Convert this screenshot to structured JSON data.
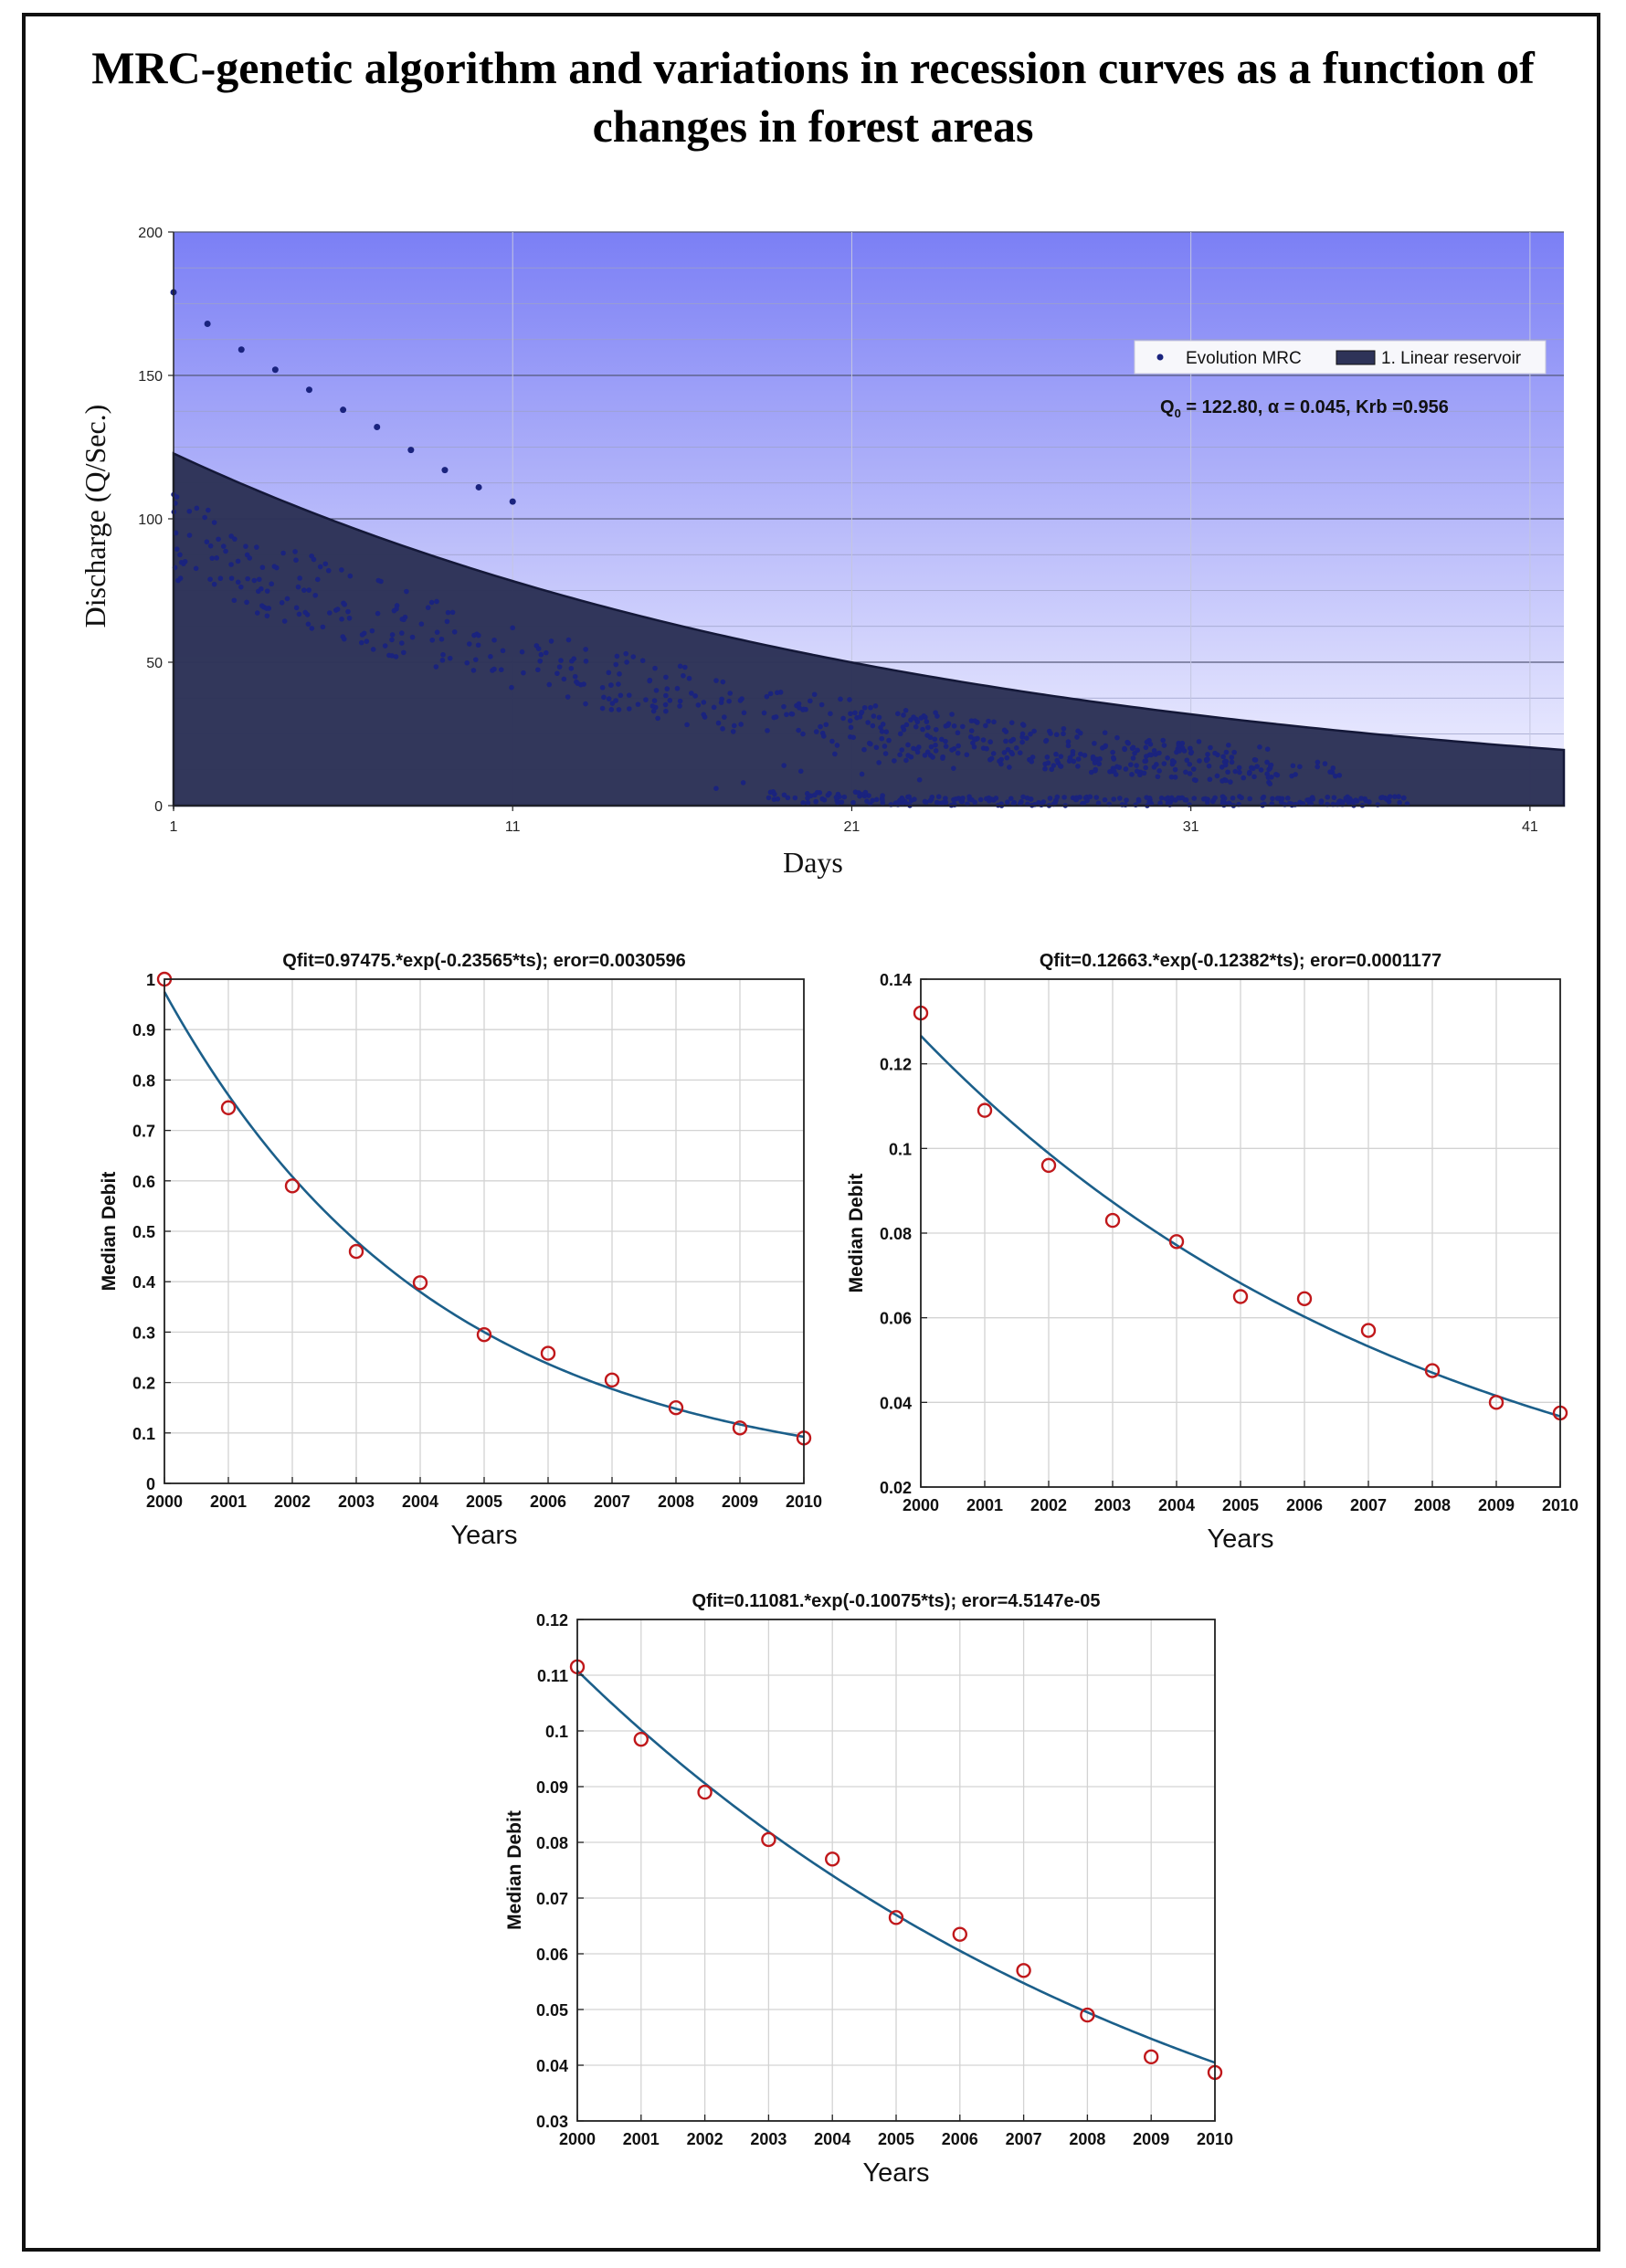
{
  "page": {
    "title": "MRC-genetic algorithm and variations in recession curves as a function of changes in forest areas"
  },
  "chart_data": [
    {
      "type": "scatter",
      "xlabel": "Days",
      "ylabel": "Discharge (Q/Sec.)",
      "xlim": [
        1,
        42
      ],
      "ylim": [
        0,
        200
      ],
      "xticks": [
        1,
        11,
        21,
        31,
        41
      ],
      "yticks": [
        0,
        50,
        100,
        150,
        200
      ],
      "legend": [
        "Evolution MRC",
        "1. Linear reservoir"
      ],
      "legend_position": "top-right",
      "annotation": {
        "prefix": "Q",
        "sub": "0",
        "rest": " = 122.80, α = 0.045, Krb =0.956"
      },
      "reservoir": {
        "q0": 122.8,
        "krb": 0.956
      },
      "upper_points": {
        "x": [
          1,
          2,
          3,
          4,
          5,
          6,
          7,
          8,
          9,
          10,
          11
        ],
        "y": [
          179,
          168,
          159,
          152,
          145,
          138,
          132,
          124,
          117,
          111,
          106
        ]
      },
      "colors": {
        "points": "#1a237e",
        "fill": "#2e3358",
        "bg_top": "#7b7ff5",
        "bg_bottom": "#f4f4ff"
      }
    },
    {
      "type": "scatter",
      "title": "Qfit=0.97475.*exp(-0.23565*ts);  eror=0.0030596",
      "xlabel": "Years",
      "ylabel": "Median Debit",
      "xlim": [
        2000,
        2010
      ],
      "ylim": [
        0,
        1
      ],
      "xticks": [
        "2000",
        "2001",
        "2002",
        "2003",
        "2004",
        "2005",
        "2006",
        "2007",
        "2008",
        "2009",
        "2010"
      ],
      "yticks": [
        "0",
        "0.1",
        "0.2",
        "0.3",
        "0.4",
        "0.5",
        "0.6",
        "0.7",
        "0.8",
        "0.9",
        "1"
      ],
      "fit": {
        "a": 0.97475,
        "b": 0.23565
      },
      "x": [
        2000,
        2001,
        2002,
        2003,
        2004,
        2005,
        2006,
        2007,
        2008,
        2009,
        2010
      ],
      "y": [
        1.0,
        0.745,
        0.59,
        0.46,
        0.398,
        0.295,
        0.258,
        0.205,
        0.15,
        0.11,
        0.09
      ]
    },
    {
      "type": "scatter",
      "title": "Qfit=0.12663.*exp(-0.12382*ts);  eror=0.0001177",
      "xlabel": "Years",
      "ylabel": "Median Debit",
      "xlim": [
        2000,
        2010
      ],
      "ylim": [
        0.02,
        0.14
      ],
      "xticks": [
        "2000",
        "2001",
        "2002",
        "2003",
        "2004",
        "2005",
        "2006",
        "2007",
        "2008",
        "2009",
        "2010"
      ],
      "yticks": [
        "0.02",
        "0.04",
        "0.06",
        "0.08",
        "0.1",
        "0.12",
        "0.14"
      ],
      "fit": {
        "a": 0.12663,
        "b": 0.12382
      },
      "x": [
        2000,
        2001,
        2002,
        2003,
        2004,
        2005,
        2006,
        2007,
        2008,
        2009,
        2010
      ],
      "y": [
        0.132,
        0.109,
        0.096,
        0.083,
        0.078,
        0.065,
        0.0645,
        0.057,
        0.0475,
        0.04,
        0.0375
      ]
    },
    {
      "type": "scatter",
      "title": "Qfit=0.11081.*exp(-0.10075*ts);  eror=4.5147e-05",
      "xlabel": "Years",
      "ylabel": "Median Debit",
      "xlim": [
        2000,
        2010
      ],
      "ylim": [
        0.03,
        0.12
      ],
      "xticks": [
        "2000",
        "2001",
        "2002",
        "2003",
        "2004",
        "2005",
        "2006",
        "2007",
        "2008",
        "2009",
        "2010"
      ],
      "yticks": [
        "0.03",
        "0.04",
        "0.05",
        "0.06",
        "0.07",
        "0.08",
        "0.09",
        "0.1",
        "0.11",
        "0.12"
      ],
      "fit": {
        "a": 0.11081,
        "b": 0.10075
      },
      "x": [
        2000,
        2001,
        2002,
        2003,
        2004,
        2005,
        2006,
        2007,
        2008,
        2009,
        2010
      ],
      "y": [
        0.1115,
        0.0985,
        0.089,
        0.0805,
        0.077,
        0.0665,
        0.0635,
        0.057,
        0.049,
        0.0415,
        0.0387
      ]
    }
  ]
}
